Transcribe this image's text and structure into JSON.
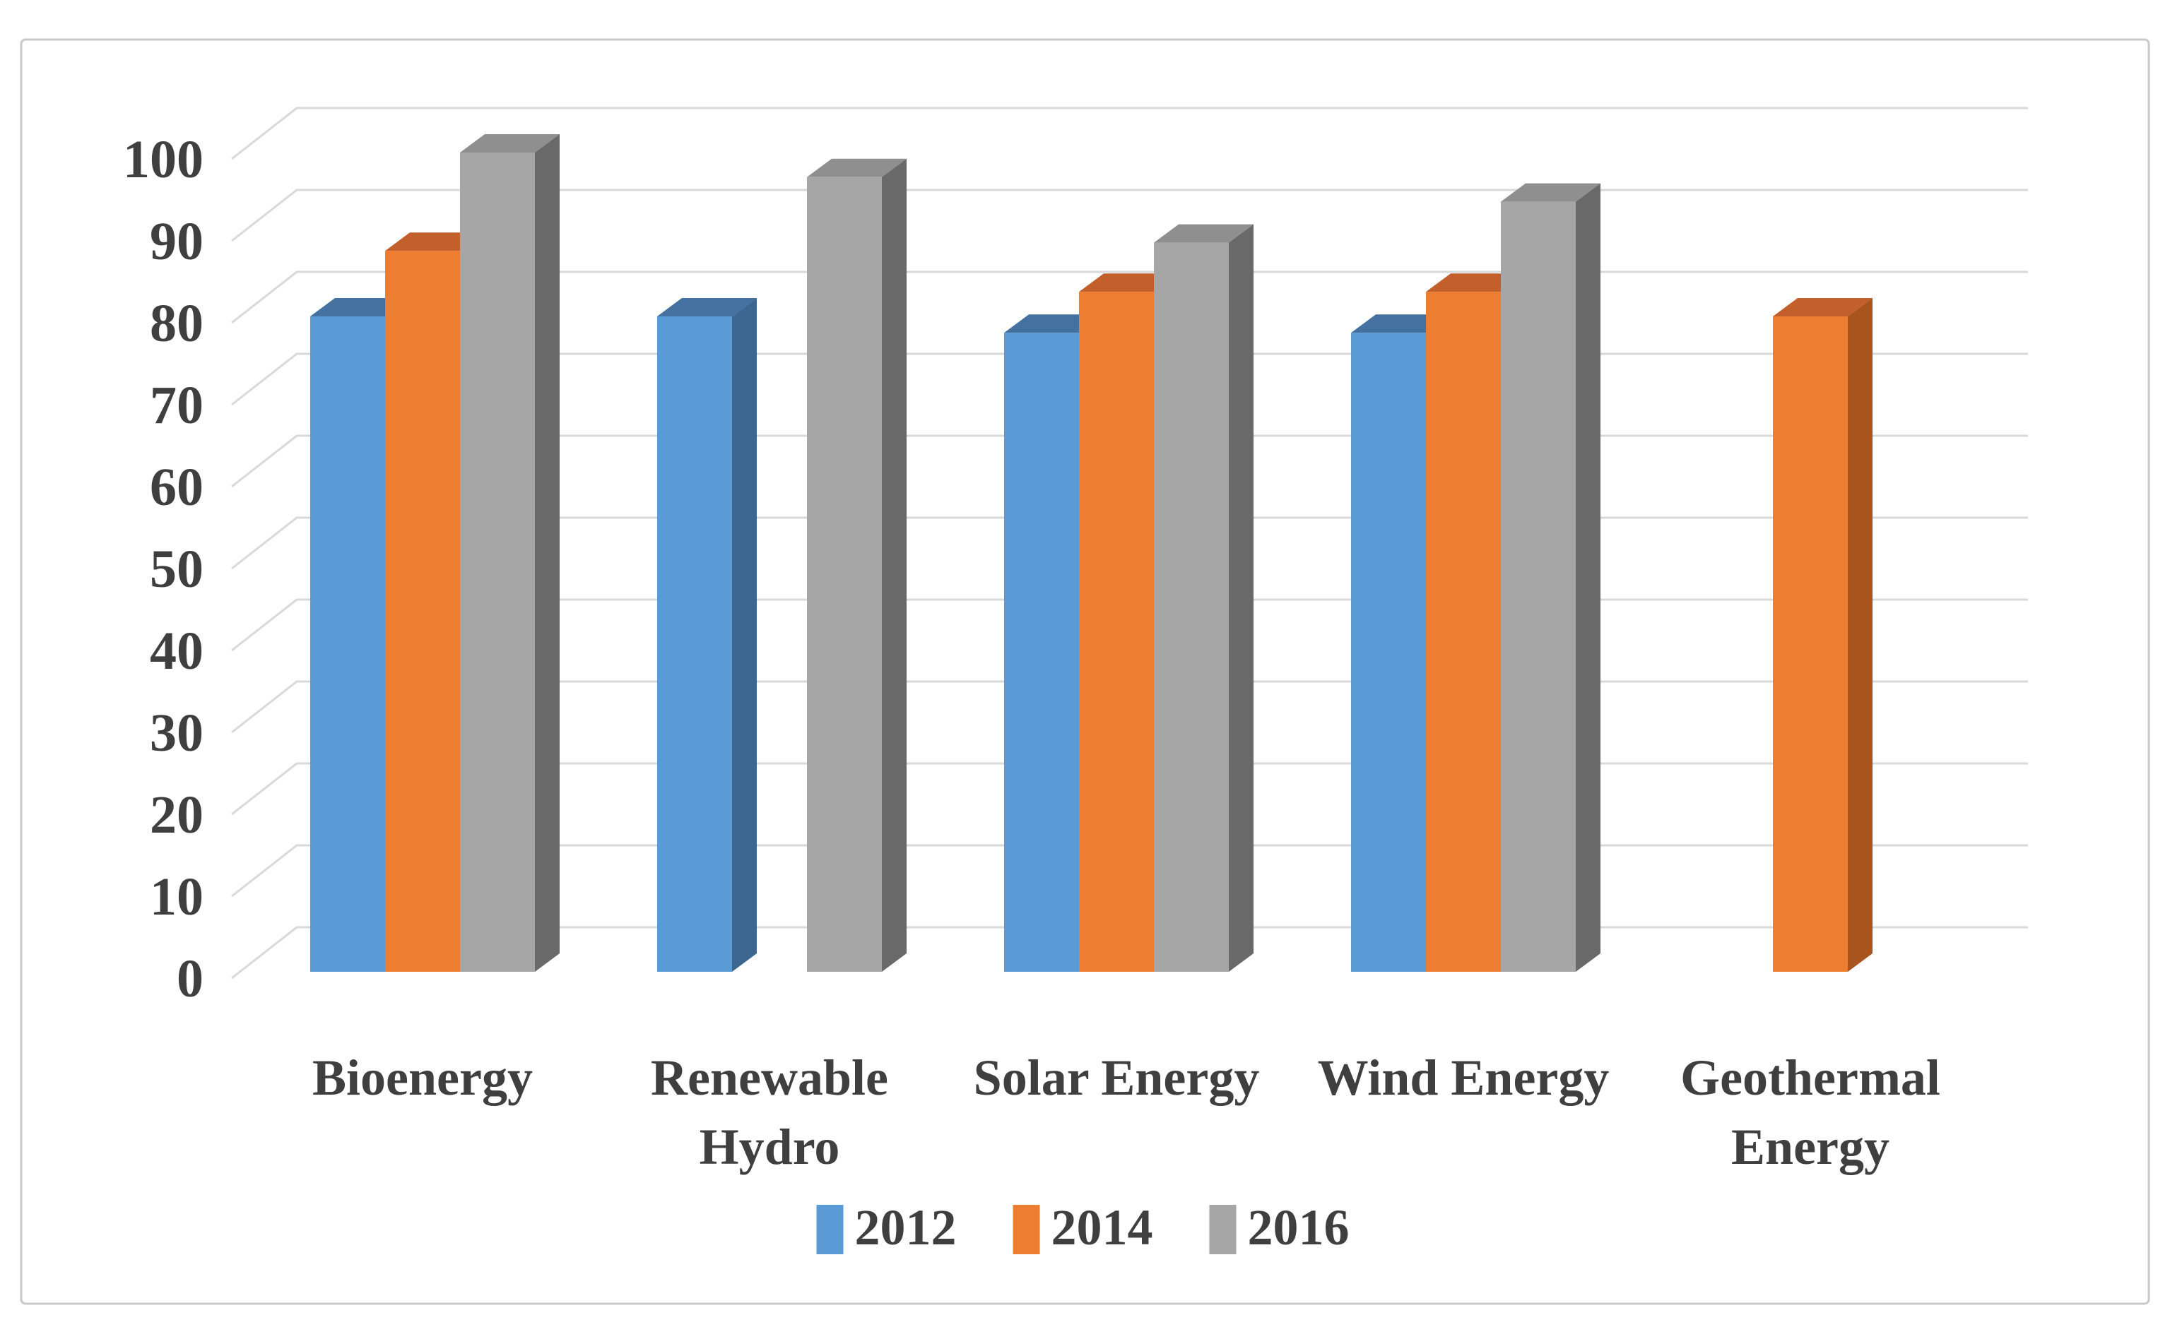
{
  "figure": {
    "background": "#FFFFFF",
    "border_color": "#C9C9C9"
  },
  "chart_data": {
    "type": "bar",
    "projection": "3d",
    "title": "",
    "xlabel": "",
    "ylabel": "",
    "categories": [
      "Bioenergy",
      "Renewable Hydro",
      "Solar Energy",
      "Wind Energy",
      "Geothermal Energy"
    ],
    "series": [
      {
        "name": "2012",
        "color": "#5B9BD5",
        "color_top": "#44719F",
        "color_side": "#3D6691",
        "values": [
          80,
          80,
          78,
          78,
          0
        ]
      },
      {
        "name": "2014",
        "color": "#ED7D31",
        "color_top": "#C25F2A",
        "color_side": "#A9541C",
        "values": [
          88,
          0,
          83,
          83,
          80
        ]
      },
      {
        "name": "2016",
        "color": "#A6A6A6",
        "color_top": "#8F8F8F",
        "color_side": "#696969",
        "values": [
          100,
          97,
          89,
          94,
          0
        ]
      }
    ],
    "ylim": [
      0,
      100
    ],
    "ytick_step": 10,
    "yticks": [
      0,
      10,
      20,
      30,
      40,
      50,
      60,
      70,
      80,
      90,
      100
    ],
    "grid": true,
    "gridline_color": "#D9D9D9",
    "legend_position": "bottom",
    "text_color": "#3F3F3F"
  }
}
